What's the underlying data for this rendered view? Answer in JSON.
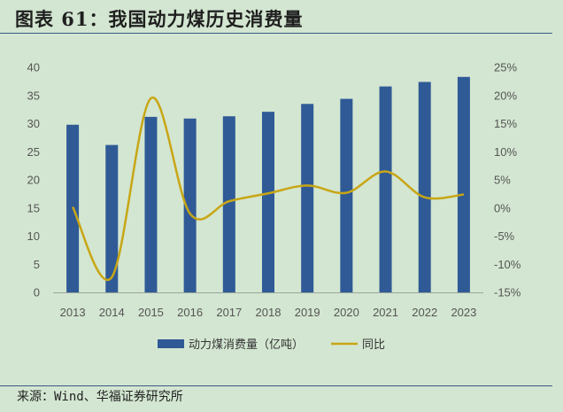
{
  "figure": {
    "title": "图表 61：我国动力煤历史消费量",
    "source": "来源：Wind、华福证券研究所"
  },
  "colors": {
    "bar": "#2f5a96",
    "line": "#c8a615",
    "background": "#d3e6d1",
    "rule": "#3b5a86"
  },
  "chart_data": {
    "type": "bar+line",
    "categories": [
      "2013",
      "2014",
      "2015",
      "2016",
      "2017",
      "2018",
      "2019",
      "2020",
      "2021",
      "2022",
      "2023"
    ],
    "series": [
      {
        "name": "动力煤消费量（亿吨）",
        "type": "bar",
        "axis": "left",
        "values": [
          29.8,
          26.2,
          31.2,
          30.9,
          31.3,
          32.1,
          33.5,
          34.4,
          36.6,
          37.4,
          38.3
        ]
      },
      {
        "name": "同比",
        "type": "line",
        "axis": "right",
        "unit": "%",
        "values": [
          0.2,
          -12.3,
          19.5,
          -1.0,
          1.2,
          2.6,
          4.0,
          2.7,
          6.5,
          1.9,
          2.4
        ]
      }
    ],
    "y_left": {
      "min": 0,
      "max": 40,
      "step": 5,
      "ticks": [
        "0",
        "5",
        "10",
        "15",
        "20",
        "25",
        "30",
        "35",
        "40"
      ]
    },
    "y_right": {
      "min": -15,
      "max": 25,
      "step": 5,
      "ticks": [
        "-15%",
        "-10%",
        "-5%",
        "0%",
        "5%",
        "10%",
        "15%",
        "20%",
        "25%"
      ]
    },
    "grid": false,
    "legend": "bottom"
  }
}
